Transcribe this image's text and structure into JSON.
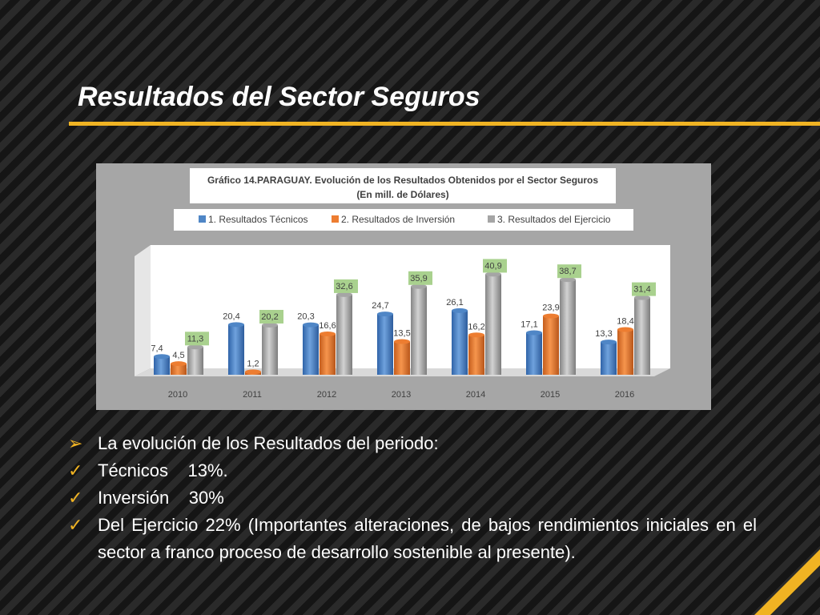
{
  "slide": {
    "title": "Resultados del Sector Seguros",
    "accent_color": "#f0b323"
  },
  "chart_data": {
    "type": "bar",
    "title_line1": "Gráfico 14.PARAGUAY. Evolución de los Resultados Obtenidos por el Sector Seguros",
    "title_line2": "(En mill. de Dólares)",
    "categories": [
      "2010",
      "2011",
      "2012",
      "2013",
      "2014",
      "2015",
      "2016"
    ],
    "series": [
      {
        "name": "1. Resultados Técnicos",
        "color": "#4f86c6",
        "values": [
          7.4,
          20.4,
          20.3,
          24.7,
          26.1,
          17.1,
          13.3
        ],
        "labels": [
          "7,4",
          "20,4",
          "20,3",
          "24,7",
          "26,1",
          "17,1",
          "13,3"
        ]
      },
      {
        "name": "2. Resultados de Inversión",
        "color": "#ed7d31",
        "values": [
          4.5,
          1.2,
          16.6,
          13.5,
          16.2,
          23.9,
          18.4
        ],
        "labels": [
          "4,5",
          "1,2",
          "16,6",
          "13,5",
          "16,2",
          "23,9",
          "18,4"
        ]
      },
      {
        "name": "3. Resultados del Ejercicio",
        "color": "#a5a5a5",
        "values": [
          11.3,
          20.2,
          32.6,
          35.9,
          40.9,
          38.7,
          31.4
        ],
        "labels": [
          "11,3",
          "20,2",
          "32,6",
          "35,9",
          "40,9",
          "38,7",
          "31,4"
        ],
        "label_bg": "#a9d18e"
      }
    ],
    "ylim": [
      0,
      45
    ],
    "legend_position": "top",
    "grid": false
  },
  "bullets": [
    {
      "marker": "➢",
      "text": "La evolución de los Resultados del periodo:"
    },
    {
      "marker": "✓",
      "text": "Técnicos    13%."
    },
    {
      "marker": "✓",
      "text": "Inversión    30%"
    },
    {
      "marker": "✓",
      "text": "Del Ejercicio 22% (Importantes alteraciones, de bajos rendimientos iniciales en el sector a franco proceso de desarrollo sostenible al presente)."
    }
  ]
}
